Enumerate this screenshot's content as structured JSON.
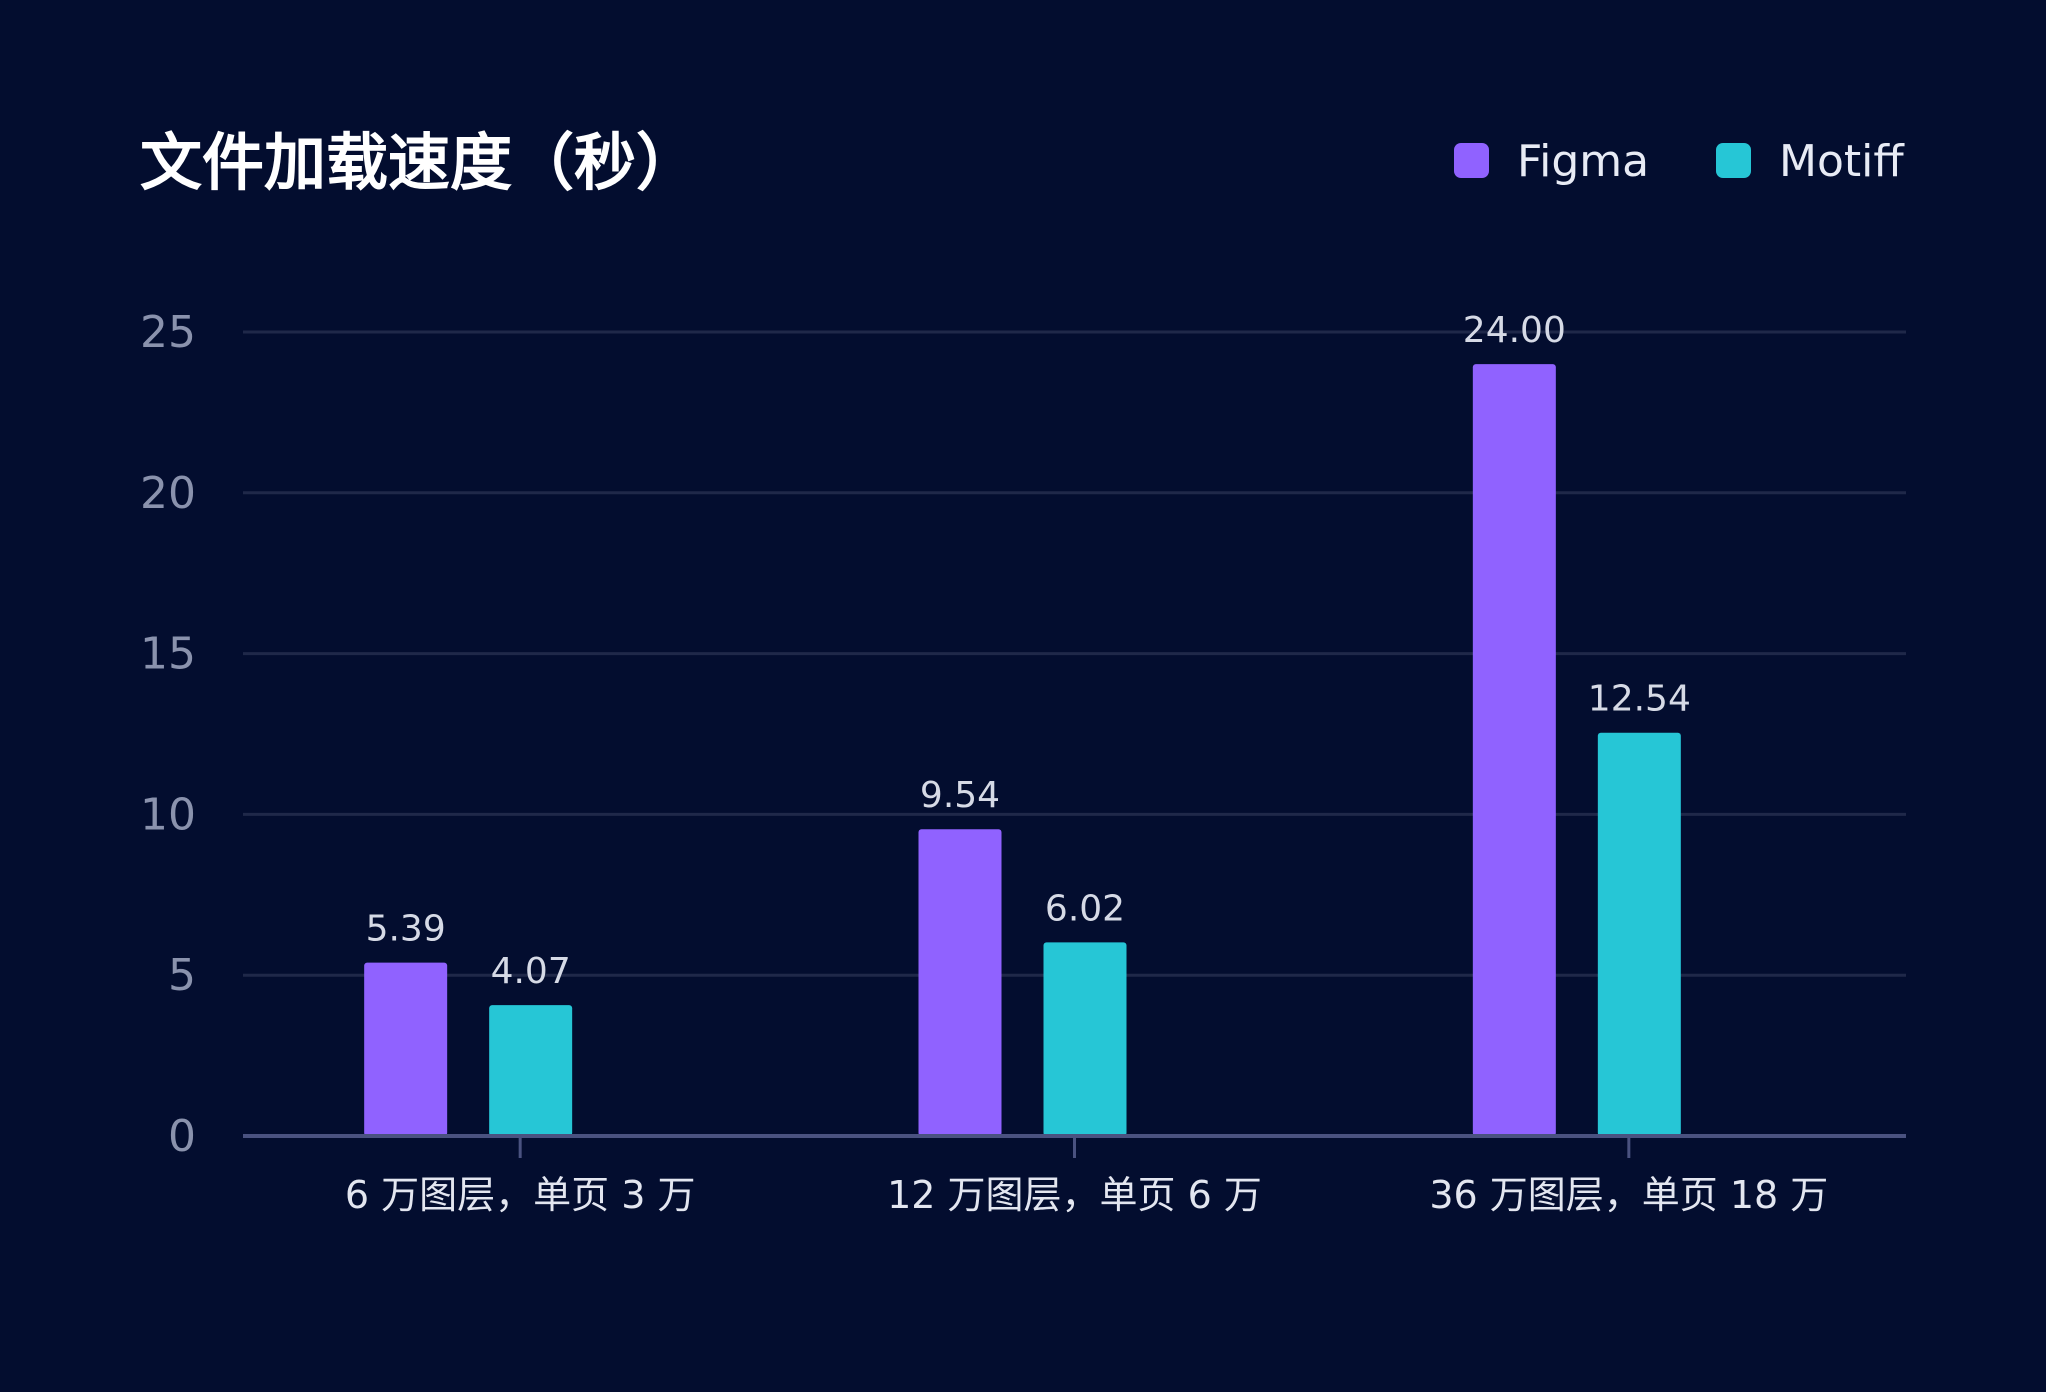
{
  "chart_data": {
    "type": "bar",
    "title": "文件加载速度（秒）",
    "categories": [
      "6 万图层，单页 3 万",
      "12 万图层，单页 6 万",
      "36 万图层，单页 18 万"
    ],
    "series": [
      {
        "name": "Figma",
        "color": "#9062ff",
        "values": [
          5.39,
          9.54,
          24.0
        ],
        "labels": [
          "5.39",
          "9.54",
          "24.00"
        ]
      },
      {
        "name": "Motiff",
        "color": "#26c6d6",
        "values": [
          4.07,
          6.02,
          12.54
        ],
        "labels": [
          "4.07",
          "6.02",
          "12.54"
        ]
      }
    ],
    "ylim": [
      0,
      25
    ],
    "yticks": [
      0,
      5,
      10,
      15,
      20,
      25
    ],
    "grid": true,
    "legend": "top-right"
  }
}
